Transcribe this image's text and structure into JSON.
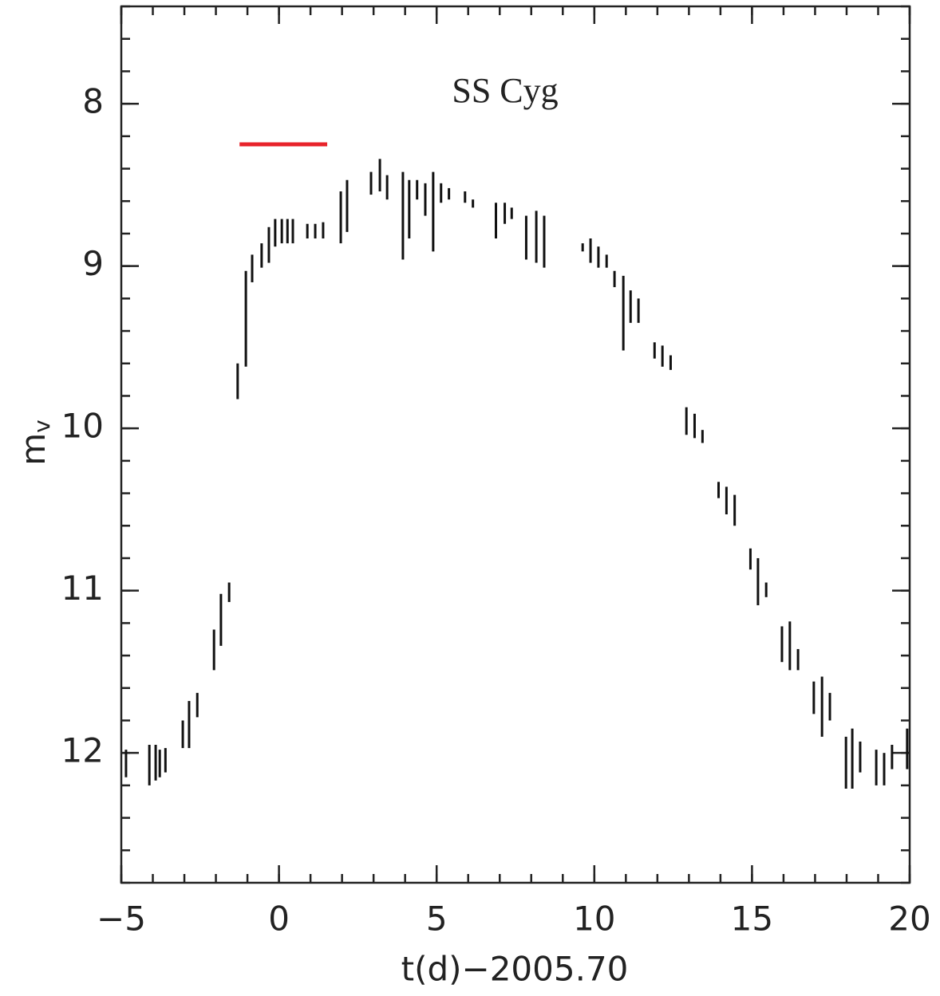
{
  "chart_data": {
    "type": "range",
    "title": "SS Cyg",
    "x_label": "t(d)−2005.70",
    "y_label": "m",
    "y_label_subscript": "v",
    "xlim": [
      -5,
      20
    ],
    "ylim": [
      12.8,
      7.4
    ],
    "xticks": [
      {
        "value": -5,
        "label": "−5"
      },
      0,
      5,
      10,
      15,
      20
    ],
    "yticks": [
      8,
      9,
      10,
      11,
      12
    ],
    "xticks_minor": [
      -5,
      -4,
      -3,
      -2,
      -1,
      0,
      1,
      2,
      3,
      4,
      5,
      6,
      7,
      8,
      9,
      10,
      11,
      12,
      13,
      14,
      15,
      16,
      17,
      18,
      19,
      20
    ],
    "yticks_minor": [
      7.4,
      7.6,
      7.8,
      8,
      8.2,
      8.4,
      8.6,
      8.8,
      9,
      9.2,
      9.4,
      9.6,
      9.8,
      10,
      10.2,
      10.4,
      10.6,
      10.8,
      11,
      11.2,
      11.4,
      11.6,
      11.8,
      12,
      12.2,
      12.4,
      12.6,
      12.8
    ],
    "color": "#111111",
    "x": [
      -4.85,
      -4.11,
      -3.91,
      -3.78,
      -3.6,
      -3.05,
      -2.85,
      -2.59,
      -2.06,
      -1.84,
      -1.58,
      -1.31,
      -1.05,
      -0.85,
      -0.55,
      -0.32,
      -0.12,
      0.09,
      0.27,
      0.44,
      0.9,
      1.15,
      1.4,
      1.96,
      2.16,
      2.92,
      3.2,
      3.43,
      3.93,
      4.13,
      4.38,
      4.64,
      4.89,
      5.14,
      5.39,
      5.9,
      6.15,
      6.88,
      7.16,
      7.38,
      7.84,
      8.16,
      8.41,
      9.63,
      9.88,
      10.13,
      10.39,
      10.64,
      10.92,
      11.15,
      11.4,
      11.91,
      12.16,
      12.42,
      12.92,
      13.18,
      13.43,
      13.94,
      14.19,
      14.45,
      14.95,
      15.19,
      15.45,
      15.95,
      16.2,
      16.46,
      16.96,
      17.22,
      17.47,
      17.98,
      18.18,
      18.43,
      18.94,
      19.19,
      19.44,
      19.92
    ],
    "bright": [
      11.98,
      11.95,
      11.95,
      11.98,
      11.97,
      11.8,
      11.68,
      11.63,
      11.24,
      11.02,
      10.95,
      9.6,
      9.03,
      8.93,
      8.86,
      8.76,
      8.71,
      8.71,
      8.71,
      8.71,
      8.74,
      8.74,
      8.73,
      8.54,
      8.47,
      8.42,
      8.34,
      8.44,
      8.42,
      8.47,
      8.47,
      8.49,
      8.42,
      8.49,
      8.52,
      8.54,
      8.59,
      8.61,
      8.61,
      8.64,
      8.69,
      8.66,
      8.69,
      8.86,
      8.83,
      8.88,
      8.93,
      9.03,
      9.06,
      9.15,
      9.2,
      9.47,
      9.49,
      9.55,
      9.87,
      9.91,
      10.01,
      10.33,
      10.36,
      10.41,
      10.74,
      10.8,
      10.95,
      11.22,
      11.19,
      11.36,
      11.56,
      11.53,
      11.63,
      11.9,
      11.85,
      11.93,
      11.98,
      12.0,
      11.95,
      11.85
    ],
    "faint": [
      12.15,
      12.2,
      12.17,
      12.15,
      12.12,
      11.97,
      11.97,
      11.78,
      11.49,
      11.34,
      11.07,
      9.82,
      9.62,
      9.1,
      9.01,
      8.98,
      8.88,
      8.86,
      8.86,
      8.86,
      8.83,
      8.83,
      8.83,
      8.86,
      8.79,
      8.56,
      8.54,
      8.59,
      8.96,
      8.83,
      8.59,
      8.69,
      8.91,
      8.61,
      8.59,
      8.61,
      8.64,
      8.83,
      8.74,
      8.71,
      8.96,
      8.98,
      9.01,
      8.91,
      8.98,
      9.01,
      9.01,
      9.13,
      9.52,
      9.35,
      9.35,
      9.57,
      9.62,
      9.64,
      10.04,
      10.06,
      10.09,
      10.43,
      10.53,
      10.6,
      10.87,
      11.09,
      11.04,
      11.44,
      11.49,
      11.49,
      11.76,
      11.9,
      11.8,
      12.22,
      12.22,
      12.12,
      12.2,
      12.2,
      12.1,
      12.1
    ],
    "highlight": {
      "x": [
        -1.25,
        1.53
      ],
      "y": 8.25,
      "color": "#e8232b"
    }
  }
}
